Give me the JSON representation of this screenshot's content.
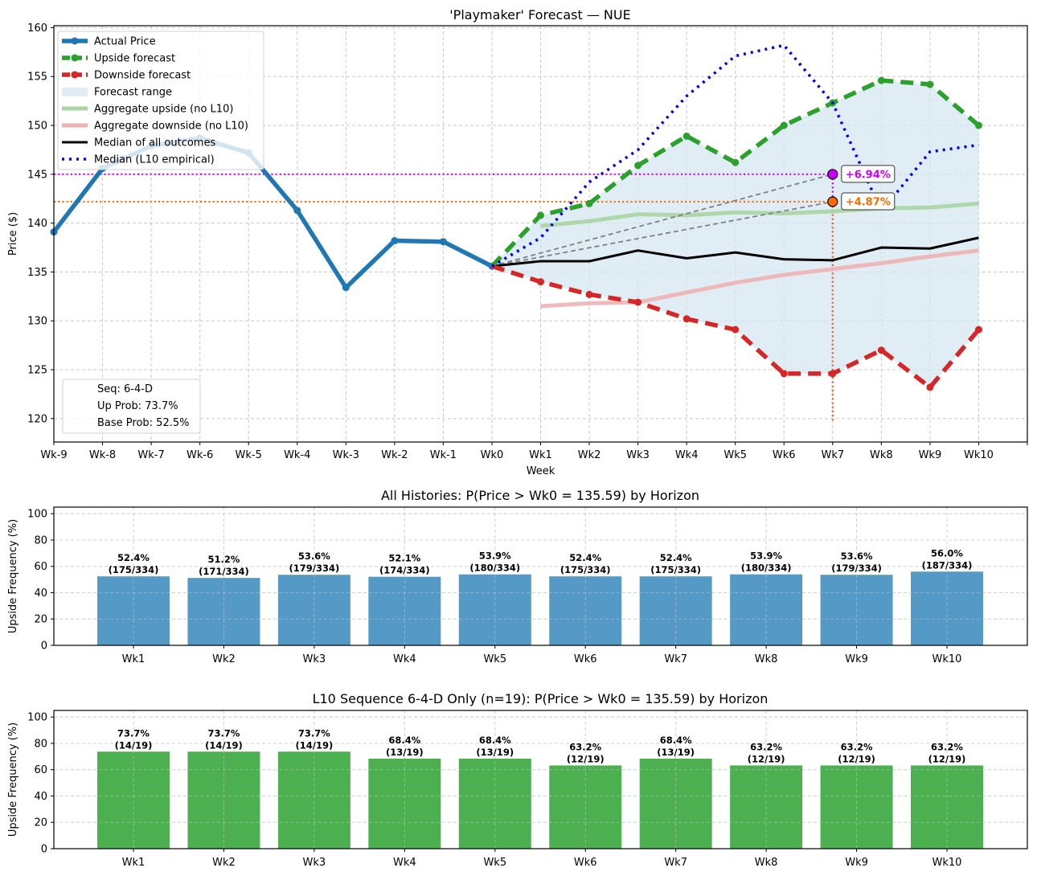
{
  "chart_data": [
    {
      "type": "line",
      "title": "'Playmaker' Forecast — NUE",
      "xlabel": "Week",
      "ylabel": "Price ($)",
      "ylim": [
        117.6,
        160.2
      ],
      "xlim_index": [
        0,
        20
      ],
      "yticks": [
        120,
        125,
        130,
        135,
        140,
        145,
        150,
        155,
        160
      ],
      "x_categories": [
        "Wk-9",
        "Wk-8",
        "Wk-7",
        "Wk-6",
        "Wk-5",
        "Wk-4",
        "Wk-3",
        "Wk-2",
        "Wk-1",
        "Wk0",
        "Wk1",
        "Wk2",
        "Wk3",
        "Wk4",
        "Wk5",
        "Wk6",
        "Wk7",
        "Wk8",
        "Wk9",
        "Wk10"
      ],
      "grid": true,
      "legend_position": "top-left",
      "series": [
        {
          "name": "Actual Price",
          "color": "#1f77b4",
          "style": "solid-markers",
          "x_start_index": 0,
          "values": [
            139.1,
            145.6,
            147.9,
            148.7,
            147.2,
            141.3,
            133.4,
            138.2,
            138.1,
            135.59
          ]
        },
        {
          "name": "Upside forecast",
          "color": "#2ca02c",
          "style": "dashed-markers",
          "x_start_index": 9,
          "values": [
            135.59,
            140.8,
            142.0,
            145.9,
            148.9,
            146.2,
            150.0,
            152.3,
            154.6,
            154.2,
            150.0
          ]
        },
        {
          "name": "Downside forecast",
          "color": "#d62728",
          "style": "dashed-markers",
          "x_start_index": 9,
          "values": [
            135.59,
            134.0,
            132.7,
            131.9,
            130.2,
            129.1,
            124.6,
            124.6,
            127.0,
            123.2,
            129.1
          ]
        },
        {
          "name": "Forecast range",
          "color": "#d6e7f2",
          "style": "fill-between-upside-downside"
        },
        {
          "name": "Aggregate upside (no L10)",
          "color": "#a8d5a2",
          "style": "solid-thick",
          "x_start_index": 10,
          "values": [
            139.7,
            140.2,
            140.9,
            140.8,
            141.1,
            141.0,
            141.2,
            141.5,
            141.6,
            142.0
          ]
        },
        {
          "name": "Aggregate downside (no L10)",
          "color": "#eeb1b3",
          "style": "solid-thick",
          "x_start_index": 10,
          "values": [
            131.5,
            131.8,
            131.9,
            132.9,
            133.9,
            134.7,
            135.3,
            135.9,
            136.6,
            137.2
          ]
        },
        {
          "name": "Median of all outcomes",
          "color": "#000000",
          "style": "solid",
          "x_start_index": 9,
          "values": [
            135.59,
            136.1,
            136.1,
            137.2,
            136.4,
            137.0,
            136.3,
            136.2,
            137.5,
            137.4,
            138.5
          ]
        },
        {
          "name": "Median (L10 empirical)",
          "color": "#0000ee",
          "style": "dotted",
          "x_start_index": 9,
          "values": [
            135.59,
            138.5,
            144.2,
            147.5,
            153.0,
            157.1,
            158.2,
            152.3,
            141.2,
            147.3,
            148.0
          ]
        }
      ],
      "targets": [
        {
          "label": "+6.94%",
          "value": 145.0,
          "x_category": "Wk7",
          "color": "#cc00ff"
        },
        {
          "label": "+4.87%",
          "value": 142.19,
          "x_category": "Wk7",
          "color": "#ff6a00"
        }
      ],
      "target_vertical_line_bottom": 119.7,
      "info_box": {
        "position": "bottom-left",
        "lines": [
          "Seq: 6-4-D",
          "Up Prob: 73.7%",
          "Base Prob: 52.5%"
        ]
      }
    },
    {
      "type": "bar",
      "title": "All Histories: P(Price > Wk0 = 135.59) by Horizon",
      "xlabel": "",
      "ylabel": "Upside Frequency (%)",
      "ylim": [
        0,
        105
      ],
      "yticks": [
        0,
        20,
        40,
        60,
        80,
        100
      ],
      "grid": true,
      "color": "#5599c7",
      "categories": [
        "Wk1",
        "Wk2",
        "Wk3",
        "Wk4",
        "Wk5",
        "Wk6",
        "Wk7",
        "Wk8",
        "Wk9",
        "Wk10"
      ],
      "values": [
        52.4,
        51.2,
        53.6,
        52.1,
        53.9,
        52.4,
        52.4,
        53.9,
        53.6,
        56.0
      ],
      "labels": [
        "52.4%",
        "51.2%",
        "53.6%",
        "52.1%",
        "53.9%",
        "52.4%",
        "52.4%",
        "53.9%",
        "53.6%",
        "56.0%"
      ],
      "counts": [
        "(175/334)",
        "(171/334)",
        "(179/334)",
        "(174/334)",
        "(180/334)",
        "(175/334)",
        "(175/334)",
        "(180/334)",
        "(179/334)",
        "(187/334)"
      ]
    },
    {
      "type": "bar",
      "title": "L10 Sequence 6-4-D Only (n=19): P(Price > Wk0 = 135.59) by Horizon",
      "xlabel": "",
      "ylabel": "Upside Frequency (%)",
      "ylim": [
        0,
        105
      ],
      "yticks": [
        0,
        20,
        40,
        60,
        80,
        100
      ],
      "grid": true,
      "color": "#4caf50",
      "categories": [
        "Wk1",
        "Wk2",
        "Wk3",
        "Wk4",
        "Wk5",
        "Wk6",
        "Wk7",
        "Wk8",
        "Wk9",
        "Wk10"
      ],
      "values": [
        73.7,
        73.7,
        73.7,
        68.4,
        68.4,
        63.2,
        68.4,
        63.2,
        63.2,
        63.2
      ],
      "labels": [
        "73.7%",
        "73.7%",
        "73.7%",
        "68.4%",
        "68.4%",
        "63.2%",
        "68.4%",
        "63.2%",
        "63.2%",
        "63.2%"
      ],
      "counts": [
        "(14/19)",
        "(14/19)",
        "(14/19)",
        "(13/19)",
        "(13/19)",
        "(12/19)",
        "(13/19)",
        "(12/19)",
        "(12/19)",
        "(12/19)"
      ]
    }
  ]
}
